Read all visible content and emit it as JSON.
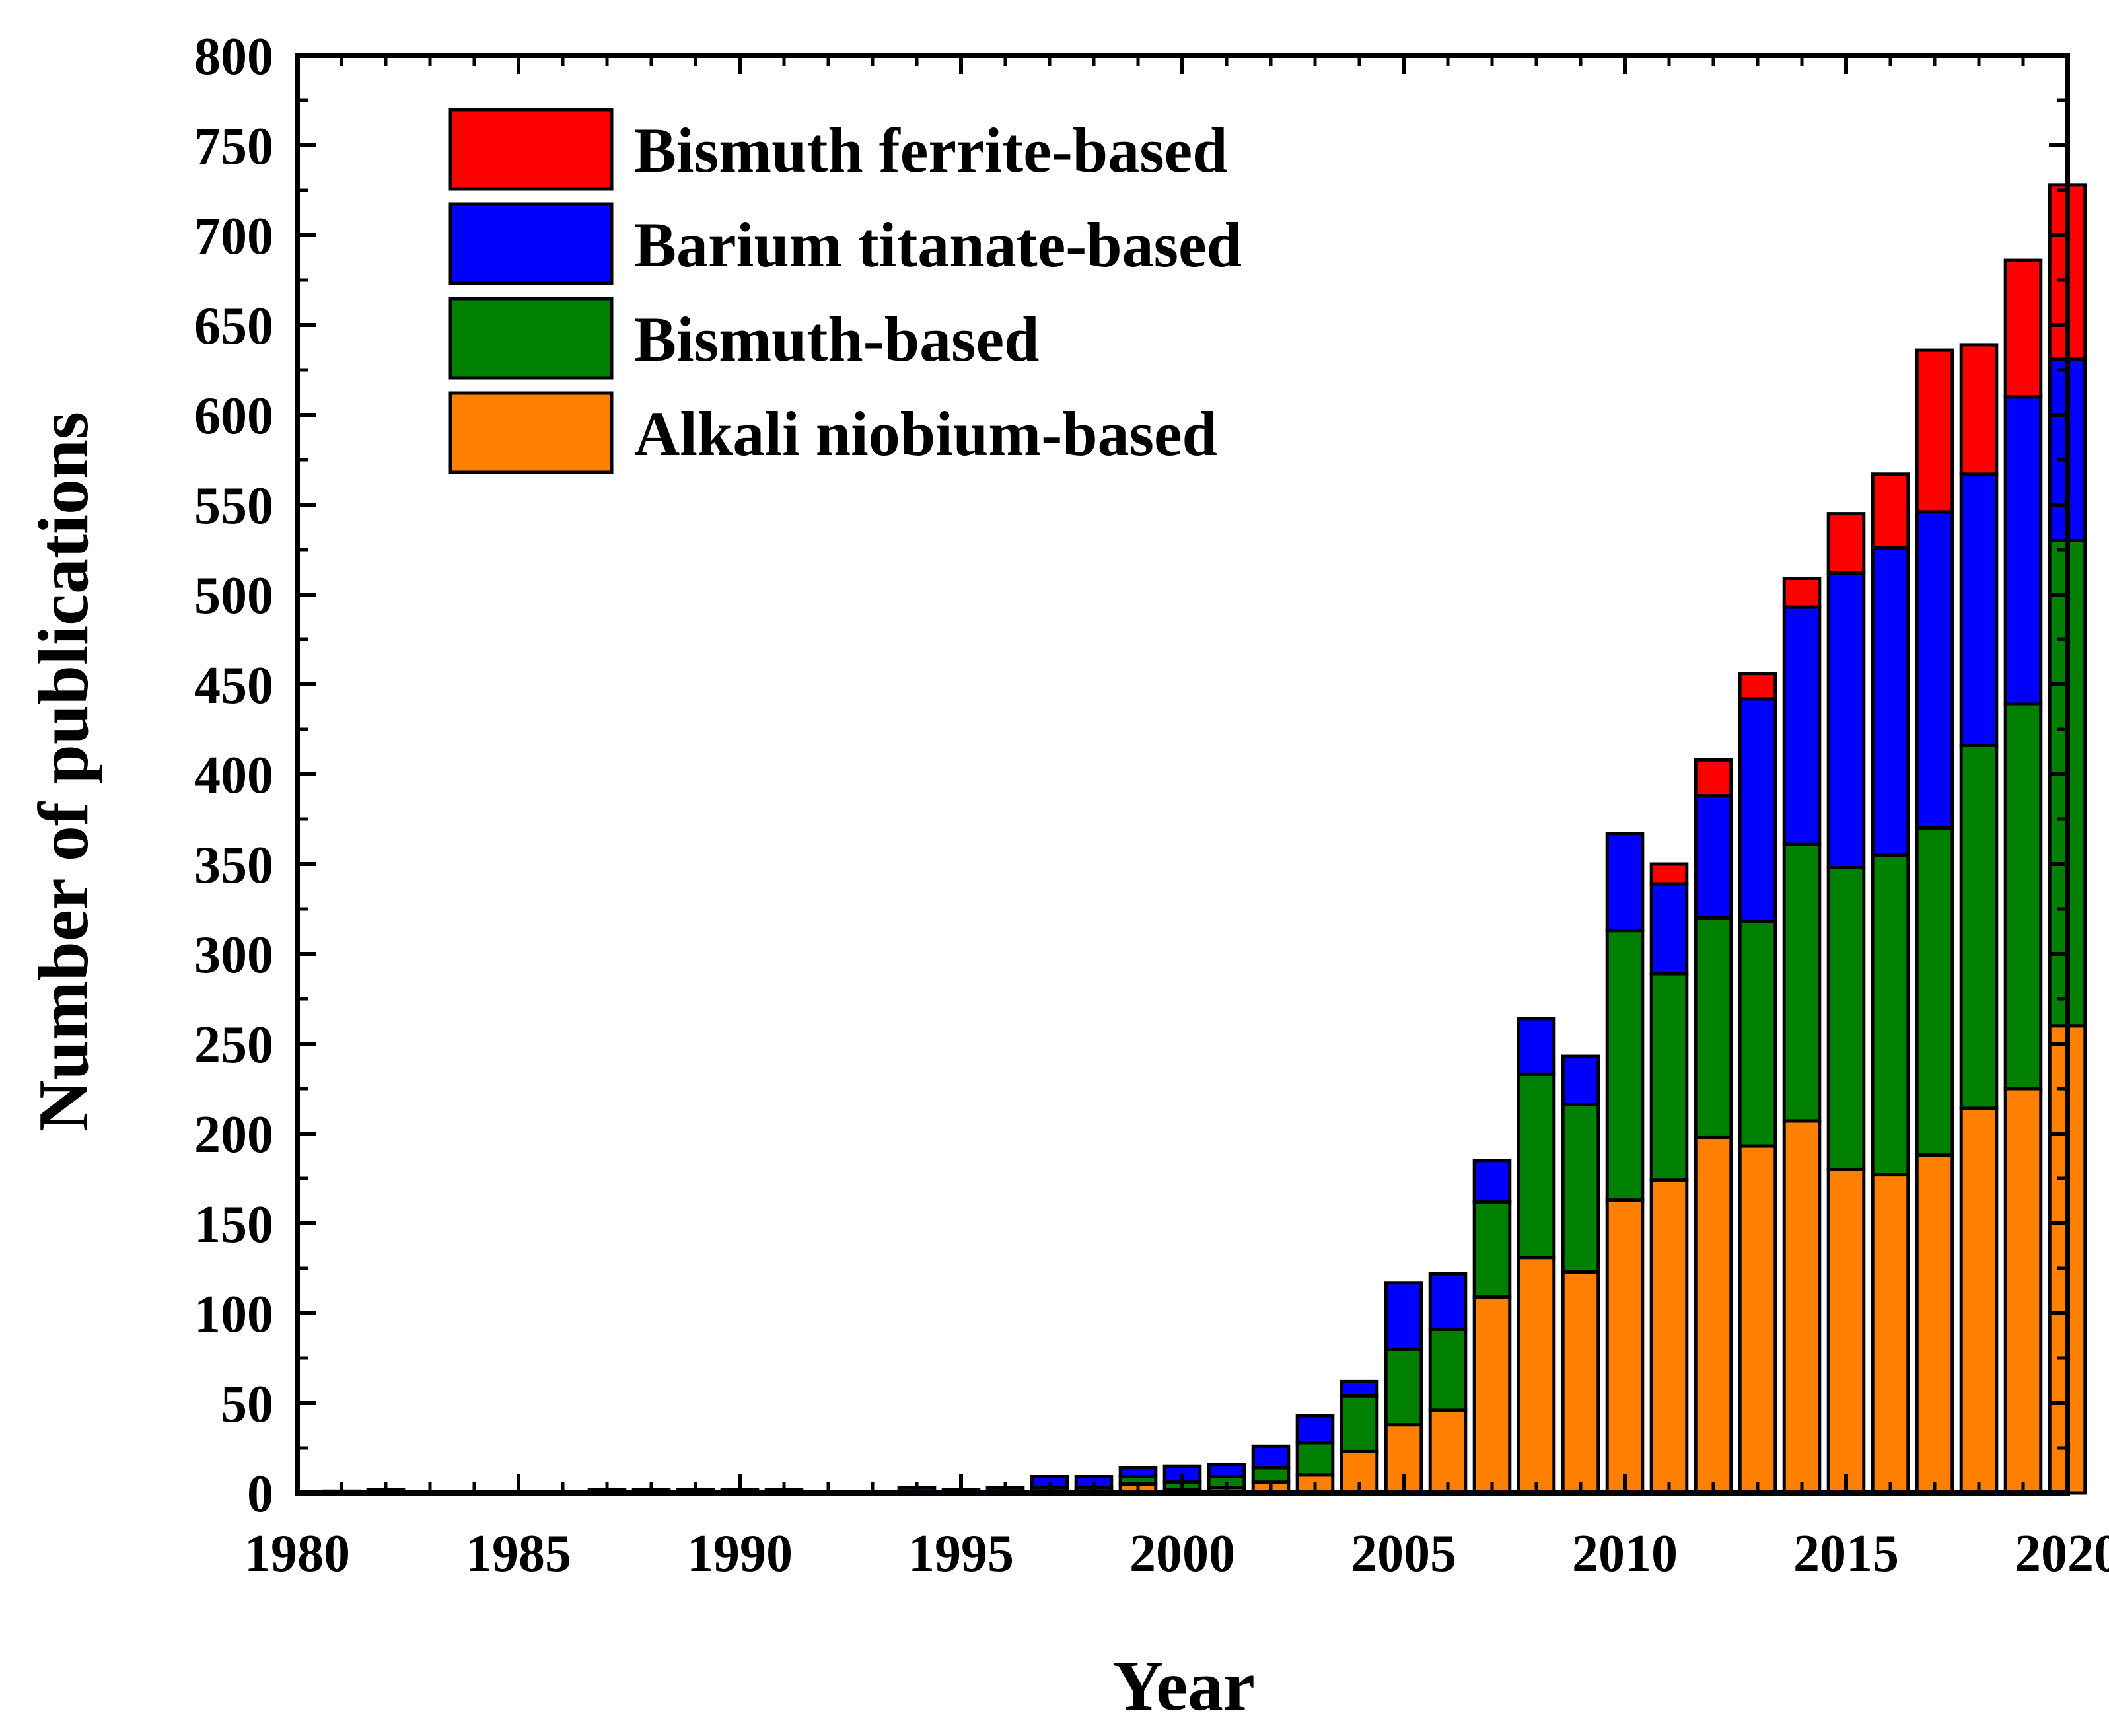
{
  "chart_data": {
    "type": "bar",
    "stacked": true,
    "xlabel": "Year",
    "ylabel": "Number of publications",
    "xlim": [
      1980,
      2020
    ],
    "ylim": [
      0,
      800
    ],
    "xticks": [
      1980,
      1985,
      1990,
      1995,
      2000,
      2005,
      2010,
      2015,
      2020
    ],
    "yticks": [
      0,
      50,
      100,
      150,
      200,
      250,
      300,
      350,
      400,
      450,
      500,
      550,
      600,
      650,
      700,
      750,
      800
    ],
    "grid": false,
    "legend_position": "top-left",
    "categories": [
      1981,
      1982,
      1983,
      1984,
      1985,
      1986,
      1987,
      1988,
      1989,
      1990,
      1991,
      1992,
      1993,
      1994,
      1995,
      1996,
      1997,
      1998,
      1999,
      2000,
      2001,
      2002,
      2003,
      2004,
      2005,
      2006,
      2007,
      2008,
      2009,
      2010,
      2011,
      2012,
      2013,
      2014,
      2015,
      2016,
      2017,
      2018,
      2019,
      2020
    ],
    "series": [
      {
        "name": "Alkali niobium-based",
        "color": "#ff8000",
        "values": [
          0,
          0,
          0,
          0,
          0,
          0,
          0,
          0,
          0,
          0,
          0,
          0,
          0,
          0,
          0,
          0,
          1,
          1,
          5,
          2,
          3,
          6,
          10,
          23,
          38,
          46,
          109,
          131,
          123,
          163,
          174,
          198,
          193,
          207,
          180,
          177,
          188,
          214,
          225,
          260
        ]
      },
      {
        "name": "Bismuth-based",
        "color": "#008000",
        "values": [
          0,
          0,
          0,
          0,
          0,
          0,
          0,
          0,
          0,
          0,
          0,
          0,
          0,
          0,
          0,
          1,
          2,
          2,
          4,
          4,
          6,
          8,
          18,
          31,
          42,
          45,
          53,
          102,
          93,
          150,
          115,
          122,
          125,
          154,
          168,
          178,
          182,
          202,
          214,
          270
        ]
      },
      {
        "name": "Barium titanate-based",
        "color": "#0000ff",
        "values": [
          1,
          2,
          0,
          0,
          0,
          0,
          2,
          2,
          2,
          2,
          2,
          0,
          0,
          3,
          2,
          2,
          6,
          6,
          5,
          9,
          7,
          12,
          15,
          8,
          37,
          31,
          23,
          31,
          27,
          54,
          50,
          68,
          124,
          132,
          164,
          171,
          176,
          151,
          171,
          101
        ]
      },
      {
        "name": "Bismuth ferrite-based",
        "color": "#ff0000",
        "values": [
          0,
          0,
          0,
          0,
          0,
          0,
          0,
          0,
          0,
          0,
          0,
          0,
          0,
          0,
          0,
          0,
          0,
          0,
          0,
          0,
          0,
          0,
          0,
          0,
          0,
          0,
          0,
          0,
          0,
          0,
          11,
          20,
          14,
          16,
          33,
          41,
          90,
          72,
          76,
          97
        ]
      }
    ],
    "legend": [
      "Bismuth ferrite-based",
      "Barium titanate-based",
      "Bismuth-based",
      "Alkali niobium-based"
    ]
  }
}
